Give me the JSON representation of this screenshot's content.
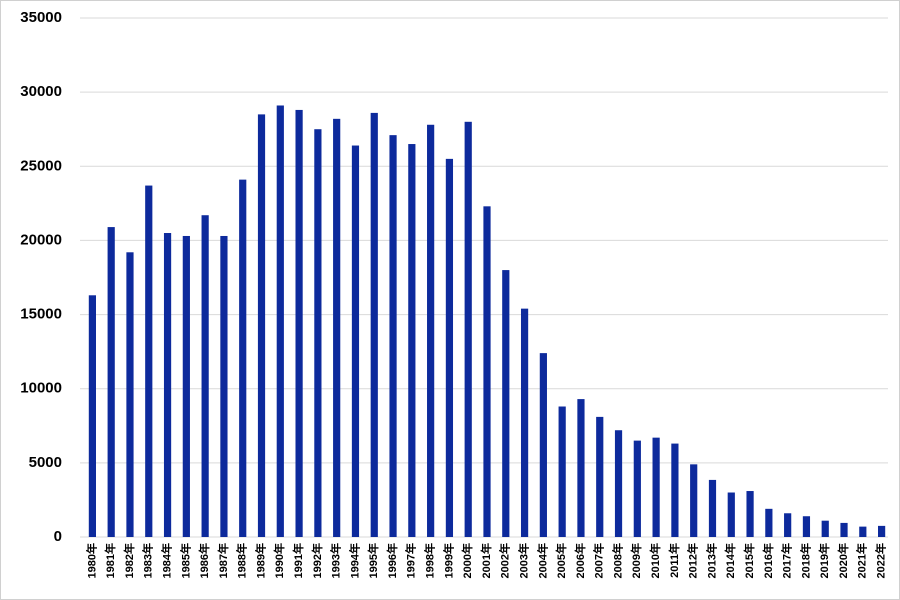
{
  "chart_data": {
    "type": "bar",
    "categories": [
      "1980年",
      "1981年",
      "1982年",
      "1983年",
      "1984年",
      "1985年",
      "1986年",
      "1987年",
      "1988年",
      "1989年",
      "1990年",
      "1991年",
      "1992年",
      "1993年",
      "1994年",
      "1995年",
      "1996年",
      "1997年",
      "1998年",
      "1999年",
      "2000年",
      "2001年",
      "2002年",
      "2003年",
      "2004年",
      "2005年",
      "2006年",
      "2007年",
      "2008年",
      "2009年",
      "2010年",
      "2011年",
      "2012年",
      "2013年",
      "2014年",
      "2015年",
      "2016年",
      "2017年",
      "2018年",
      "2019年",
      "2020年",
      "2021年",
      "2022年"
    ],
    "values": [
      16300,
      20900,
      19200,
      23700,
      20500,
      20300,
      21700,
      20300,
      24100,
      28500,
      29100,
      28800,
      27500,
      28200,
      26400,
      28600,
      27100,
      26500,
      27800,
      25500,
      28000,
      22300,
      18000,
      15400,
      12400,
      8800,
      9300,
      8100,
      7200,
      6500,
      6700,
      6300,
      4900,
      3850,
      3000,
      3100,
      1900,
      1600,
      1400,
      1100,
      950,
      700,
      750
    ],
    "color": "#0d2a9c",
    "ylim": [
      0,
      35000
    ],
    "yticks": [
      0,
      5000,
      10000,
      15000,
      20000,
      25000,
      30000,
      35000
    ],
    "grid": true
  }
}
